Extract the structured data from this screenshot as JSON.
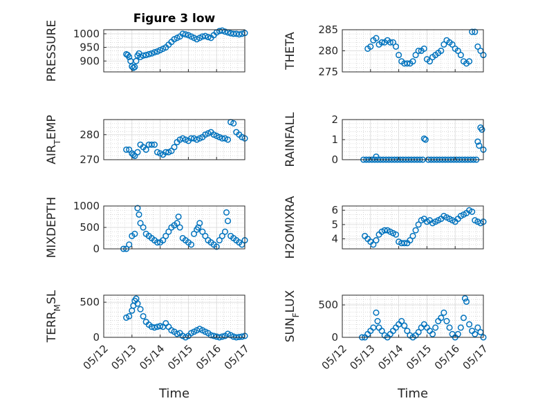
{
  "figure_title": "Figure 3 low",
  "chart_data": [
    {
      "type": "scatter",
      "ylabel": "PRESSURE",
      "ylim": [
        860,
        1015
      ],
      "yticks": [
        900,
        950,
        1000
      ],
      "xlim": [
        0,
        5
      ],
      "xticklabels": [],
      "color": "#0072BD",
      "x": [
        0.8,
        0.85,
        0.9,
        0.95,
        1.0,
        1.05,
        1.1,
        1.15,
        1.2,
        1.25,
        1.3,
        1.4,
        1.5,
        1.6,
        1.7,
        1.8,
        1.9,
        2.0,
        2.1,
        2.2,
        2.3,
        2.4,
        2.5,
        2.6,
        2.7,
        2.8,
        2.9,
        3.0,
        3.1,
        3.2,
        3.3,
        3.4,
        3.5,
        3.6,
        3.7,
        3.8,
        3.9,
        4.0,
        4.1,
        4.2,
        4.3,
        4.4,
        4.5,
        4.6,
        4.7,
        4.8,
        4.9,
        5.0
      ],
      "y": [
        925,
        922,
        915,
        900,
        880,
        875,
        878,
        900,
        920,
        928,
        915,
        920,
        922,
        925,
        928,
        932,
        935,
        940,
        945,
        950,
        960,
        970,
        980,
        985,
        990,
        1000,
        998,
        995,
        990,
        985,
        980,
        985,
        990,
        992,
        988,
        985,
        995,
        1005,
        1010,
        1012,
        1008,
        1005,
        1002,
        1000,
        1000,
        998,
        1000,
        1003
      ],
      "xlabel": ""
    },
    {
      "type": "scatter",
      "ylabel": "THETA",
      "ylim": [
        275,
        285
      ],
      "yticks": [
        275,
        280,
        285
      ],
      "xlim": [
        0,
        5
      ],
      "xticklabels": [],
      "color": "#0072BD",
      "x": [
        0.9,
        1.0,
        1.1,
        1.2,
        1.3,
        1.4,
        1.5,
        1.6,
        1.7,
        1.8,
        1.9,
        2.0,
        2.1,
        2.2,
        2.3,
        2.4,
        2.5,
        2.6,
        2.7,
        2.8,
        2.9,
        3.0,
        3.1,
        3.2,
        3.3,
        3.4,
        3.5,
        3.6,
        3.7,
        3.8,
        3.9,
        4.0,
        4.1,
        4.2,
        4.3,
        4.4,
        4.5,
        4.6,
        4.7,
        4.8,
        4.9,
        5.0
      ],
      "y": [
        280.5,
        281,
        282.5,
        283,
        281.5,
        282,
        282,
        282.5,
        282,
        282,
        281,
        279,
        277.5,
        277,
        277,
        277,
        277.5,
        279,
        280,
        280,
        280.5,
        278,
        277.5,
        278.5,
        279,
        279.5,
        280,
        281.5,
        282.5,
        282,
        281.5,
        280.5,
        280,
        279,
        277.5,
        277,
        277.5,
        284.5,
        284.5,
        281,
        280,
        279
      ],
      "xlabel": ""
    },
    {
      "type": "scatter",
      "ylabel": "AIR_TEMP",
      "ylim": [
        270,
        286
      ],
      "yticks": [
        270,
        280
      ],
      "xlim": [
        0,
        5
      ],
      "xticklabels": [],
      "color": "#0072BD",
      "x": [
        0.8,
        0.9,
        1.0,
        1.05,
        1.1,
        1.2,
        1.3,
        1.4,
        1.5,
        1.6,
        1.7,
        1.8,
        1.9,
        2.0,
        2.1,
        2.2,
        2.3,
        2.4,
        2.5,
        2.6,
        2.7,
        2.8,
        2.9,
        3.0,
        3.1,
        3.2,
        3.3,
        3.4,
        3.5,
        3.6,
        3.7,
        3.8,
        3.9,
        4.0,
        4.1,
        4.2,
        4.3,
        4.4,
        4.5,
        4.6,
        4.7,
        4.8,
        4.9,
        5.0
      ],
      "y": [
        274,
        274,
        272.5,
        272,
        271.5,
        273,
        276,
        275,
        274,
        276,
        276,
        276,
        273,
        272.5,
        272,
        273,
        273,
        273.5,
        275,
        277,
        278,
        278.5,
        278,
        277.5,
        278.5,
        278.5,
        278,
        278.5,
        279,
        280,
        280.5,
        281,
        280,
        279.5,
        279,
        278.5,
        278.5,
        278,
        285,
        284.5,
        281,
        280,
        279,
        278.5
      ],
      "xlabel": ""
    },
    {
      "type": "scatter",
      "ylabel": "RAINFALL",
      "ylim": [
        0,
        2
      ],
      "yticks": [
        0,
        1,
        2
      ],
      "xlim": [
        0,
        5
      ],
      "xticklabels": [],
      "color": "#0072BD",
      "x": [
        0.75,
        0.85,
        0.95,
        1.05,
        1.15,
        1.2,
        1.25,
        1.35,
        1.45,
        1.55,
        1.65,
        1.75,
        1.85,
        1.95,
        2.05,
        2.15,
        2.25,
        2.35,
        2.45,
        2.55,
        2.65,
        2.75,
        2.85,
        2.9,
        2.95,
        3.05,
        3.15,
        3.25,
        3.35,
        3.45,
        3.55,
        3.65,
        3.75,
        3.85,
        3.95,
        4.05,
        4.15,
        4.25,
        4.35,
        4.45,
        4.55,
        4.65,
        4.75,
        4.8,
        4.85,
        4.9,
        4.95,
        5.0
      ],
      "y": [
        0,
        0,
        0,
        0,
        0,
        0.15,
        0,
        0,
        0,
        0,
        0,
        0,
        0,
        0,
        0,
        0,
        0,
        0,
        0,
        0,
        0,
        0,
        0,
        1.05,
        1.0,
        0,
        0,
        0,
        0,
        0,
        0,
        0,
        0,
        0,
        0,
        0,
        0,
        0,
        0,
        0,
        0,
        0,
        0,
        0.9,
        0.7,
        1.6,
        1.5,
        0.5
      ],
      "xlabel": ""
    },
    {
      "type": "scatter",
      "ylabel": "MIXDEPTH",
      "ylim": [
        0,
        1000
      ],
      "yticks": [
        0,
        500,
        1000
      ],
      "xlim": [
        0,
        5
      ],
      "xticklabels": [],
      "color": "#0072BD",
      "x": [
        0.7,
        0.8,
        0.9,
        1.0,
        1.1,
        1.2,
        1.25,
        1.3,
        1.4,
        1.5,
        1.6,
        1.7,
        1.8,
        1.9,
        2.0,
        2.1,
        2.2,
        2.3,
        2.4,
        2.5,
        2.6,
        2.65,
        2.7,
        2.8,
        2.9,
        3.0,
        3.1,
        3.2,
        3.3,
        3.35,
        3.4,
        3.5,
        3.6,
        3.7,
        3.8,
        3.9,
        4.0,
        4.1,
        4.2,
        4.3,
        4.35,
        4.4,
        4.5,
        4.6,
        4.7,
        4.8,
        4.9,
        5.0
      ],
      "y": [
        0,
        0,
        100,
        300,
        350,
        950,
        800,
        600,
        500,
        350,
        300,
        250,
        200,
        150,
        150,
        200,
        300,
        400,
        500,
        550,
        600,
        750,
        500,
        250,
        200,
        150,
        100,
        350,
        450,
        500,
        600,
        400,
        300,
        200,
        150,
        100,
        50,
        200,
        300,
        400,
        850,
        650,
        300,
        250,
        200,
        150,
        100,
        200
      ],
      "xlabel": ""
    },
    {
      "type": "scatter",
      "ylabel": "H2OMIXRA",
      "ylim": [
        3.3,
        6.3
      ],
      "yticks": [
        4,
        5,
        6
      ],
      "xlim": [
        0,
        5
      ],
      "xticklabels": [],
      "color": "#0072BD",
      "x": [
        0.8,
        0.9,
        1.0,
        1.1,
        1.2,
        1.3,
        1.4,
        1.5,
        1.6,
        1.7,
        1.8,
        1.9,
        2.0,
        2.1,
        2.2,
        2.3,
        2.4,
        2.5,
        2.6,
        2.7,
        2.8,
        2.9,
        3.0,
        3.1,
        3.2,
        3.3,
        3.4,
        3.5,
        3.6,
        3.7,
        3.8,
        3.9,
        4.0,
        4.1,
        4.2,
        4.3,
        4.4,
        4.5,
        4.6,
        4.7,
        4.8,
        4.9,
        5.0
      ],
      "y": [
        4.2,
        4.0,
        3.8,
        3.6,
        3.9,
        4.3,
        4.5,
        4.6,
        4.6,
        4.5,
        4.4,
        4.3,
        3.8,
        3.7,
        3.7,
        3.7,
        3.9,
        4.2,
        4.6,
        5.0,
        5.3,
        5.4,
        5.2,
        5.3,
        5.1,
        5.2,
        5.3,
        5.4,
        5.6,
        5.5,
        5.4,
        5.3,
        5.2,
        5.4,
        5.6,
        5.7,
        5.8,
        6.0,
        5.9,
        5.3,
        5.2,
        5.1,
        5.2
      ],
      "xlabel": ""
    },
    {
      "type": "scatter",
      "ylabel": "TERR_MSL",
      "ylim": [
        0,
        600
      ],
      "yticks": [
        0,
        500
      ],
      "xlim": [
        0,
        5
      ],
      "xticklabels": [
        "05/12",
        "05/13",
        "05/14",
        "05/15",
        "05/16",
        "05/17"
      ],
      "color": "#0072BD",
      "x": [
        0.8,
        0.9,
        1.0,
        1.05,
        1.1,
        1.15,
        1.2,
        1.3,
        1.4,
        1.5,
        1.6,
        1.7,
        1.8,
        1.9,
        2.0,
        2.1,
        2.2,
        2.3,
        2.4,
        2.5,
        2.6,
        2.7,
        2.8,
        2.9,
        3.0,
        3.1,
        3.2,
        3.3,
        3.4,
        3.5,
        3.6,
        3.7,
        3.8,
        3.9,
        4.0,
        4.1,
        4.2,
        4.3,
        4.4,
        4.5,
        4.6,
        4.7,
        4.8,
        4.9,
        5.0
      ],
      "y": [
        280,
        300,
        380,
        450,
        520,
        550,
        480,
        400,
        300,
        220,
        180,
        150,
        140,
        150,
        160,
        150,
        200,
        150,
        100,
        80,
        50,
        60,
        20,
        0,
        20,
        60,
        80,
        100,
        120,
        100,
        80,
        60,
        30,
        20,
        10,
        0,
        10,
        20,
        50,
        30,
        10,
        0,
        5,
        10,
        20
      ],
      "xlabel": "Time"
    },
    {
      "type": "scatter",
      "ylabel": "SUN_FLUX",
      "ylim": [
        0,
        650
      ],
      "yticks": [
        0,
        500
      ],
      "xlim": [
        0,
        5
      ],
      "xticklabels": [
        "05/12",
        "05/13",
        "05/14",
        "05/15",
        "05/16",
        "05/17"
      ],
      "color": "#0072BD",
      "x": [
        0.7,
        0.8,
        0.9,
        1.0,
        1.1,
        1.2,
        1.25,
        1.3,
        1.4,
        1.5,
        1.6,
        1.7,
        1.8,
        1.9,
        2.0,
        2.1,
        2.2,
        2.3,
        2.4,
        2.5,
        2.6,
        2.7,
        2.8,
        2.9,
        3.0,
        3.1,
        3.2,
        3.3,
        3.4,
        3.5,
        3.6,
        3.7,
        3.8,
        3.9,
        4.0,
        4.1,
        4.2,
        4.3,
        4.35,
        4.4,
        4.5,
        4.6,
        4.7,
        4.8,
        4.9,
        5.0
      ],
      "y": [
        0,
        0,
        50,
        100,
        150,
        380,
        250,
        150,
        100,
        30,
        0,
        50,
        100,
        150,
        200,
        250,
        180,
        100,
        30,
        0,
        30,
        80,
        150,
        200,
        150,
        100,
        50,
        150,
        250,
        300,
        380,
        250,
        150,
        50,
        0,
        50,
        150,
        300,
        600,
        550,
        200,
        100,
        50,
        150,
        80,
        0
      ],
      "xlabel": "Time"
    }
  ]
}
